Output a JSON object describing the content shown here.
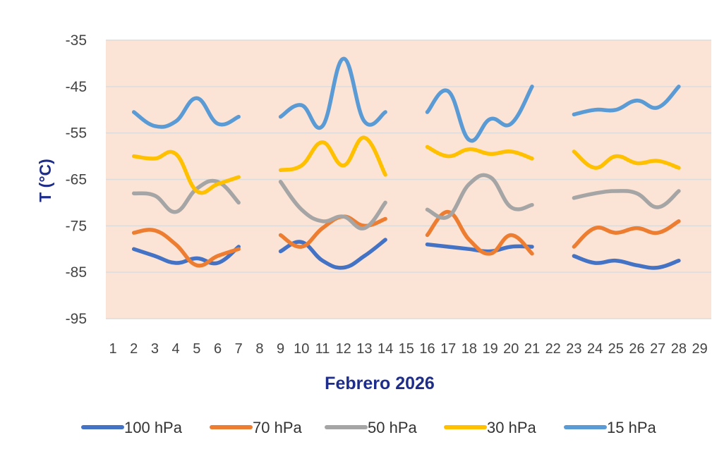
{
  "chart_data": {
    "type": "line",
    "title": "",
    "xlabel": "Febrero 2026",
    "ylabel": "T (°C)",
    "ylim": [
      -95,
      -35
    ],
    "yticks": [
      -35,
      -45,
      -55,
      -65,
      -75,
      -85,
      -95
    ],
    "xlim": [
      1,
      29
    ],
    "xticks": [
      1,
      2,
      3,
      4,
      5,
      6,
      7,
      8,
      9,
      10,
      11,
      12,
      13,
      14,
      15,
      16,
      17,
      18,
      19,
      20,
      21,
      22,
      23,
      24,
      25,
      26,
      27,
      28,
      29
    ],
    "grid": true,
    "plot_background": "#fbe4d6",
    "legend_position": "bottom",
    "series": [
      {
        "name": "100 hPa",
        "color": "#4472c4",
        "segments": [
          [
            [
              2,
              -80
            ],
            [
              3,
              -81.5
            ],
            [
              4,
              -83
            ],
            [
              5,
              -82
            ],
            [
              6,
              -83
            ],
            [
              7,
              -79.5
            ]
          ],
          [
            [
              9,
              -80.5
            ],
            [
              10,
              -78.5
            ],
            [
              11,
              -82.5
            ],
            [
              12,
              -84
            ],
            [
              13,
              -81.5
            ],
            [
              14,
              -78
            ]
          ],
          [
            [
              16,
              -79
            ],
            [
              17,
              -79.5
            ],
            [
              18,
              -80
            ],
            [
              19,
              -80.5
            ],
            [
              20,
              -79.5
            ],
            [
              21,
              -79.5
            ]
          ],
          [
            [
              23,
              -81.5
            ],
            [
              24,
              -83
            ],
            [
              25,
              -82.5
            ],
            [
              26,
              -83.5
            ],
            [
              27,
              -84
            ],
            [
              28,
              -82.5
            ]
          ]
        ]
      },
      {
        "name": "70 hPa",
        "color": "#ed7d31",
        "segments": [
          [
            [
              2,
              -76.5
            ],
            [
              3,
              -76
            ],
            [
              4,
              -79
            ],
            [
              5,
              -83.5
            ],
            [
              6,
              -81.5
            ],
            [
              7,
              -80
            ]
          ],
          [
            [
              9,
              -77
            ],
            [
              10,
              -79.5
            ],
            [
              11,
              -75.5
            ],
            [
              12,
              -73
            ],
            [
              13,
              -75
            ],
            [
              14,
              -73.5
            ]
          ],
          [
            [
              16,
              -77
            ],
            [
              17,
              -72
            ],
            [
              18,
              -78
            ],
            [
              19,
              -81
            ],
            [
              20,
              -77
            ],
            [
              21,
              -81
            ]
          ],
          [
            [
              23,
              -79.5
            ],
            [
              24,
              -75.5
            ],
            [
              25,
              -76.5
            ],
            [
              26,
              -75.5
            ],
            [
              27,
              -76.5
            ],
            [
              28,
              -74
            ]
          ]
        ]
      },
      {
        "name": "50 hPa",
        "color": "#a5a5a5",
        "segments": [
          [
            [
              2,
              -68
            ],
            [
              3,
              -68.5
            ],
            [
              4,
              -72
            ],
            [
              5,
              -67
            ],
            [
              6,
              -65.5
            ],
            [
              7,
              -70
            ]
          ],
          [
            [
              9,
              -65.5
            ],
            [
              10,
              -71.5
            ],
            [
              11,
              -74
            ],
            [
              12,
              -73
            ],
            [
              13,
              -75.5
            ],
            [
              14,
              -70
            ]
          ],
          [
            [
              16,
              -71.5
            ],
            [
              17,
              -73
            ],
            [
              18,
              -66
            ],
            [
              19,
              -64.5
            ],
            [
              20,
              -71
            ],
            [
              21,
              -70.5
            ]
          ],
          [
            [
              23,
              -69
            ],
            [
              24,
              -68
            ],
            [
              25,
              -67.5
            ],
            [
              26,
              -68
            ],
            [
              27,
              -71
            ],
            [
              28,
              -67.5
            ]
          ]
        ]
      },
      {
        "name": "30 hPa",
        "color": "#ffc000",
        "segments": [
          [
            [
              2,
              -60
            ],
            [
              3,
              -60.5
            ],
            [
              4,
              -59.5
            ],
            [
              5,
              -67.5
            ],
            [
              6,
              -66
            ],
            [
              7,
              -64.5
            ]
          ],
          [
            [
              9,
              -63
            ],
            [
              10,
              -62
            ],
            [
              11,
              -57
            ],
            [
              12,
              -62
            ],
            [
              13,
              -56
            ],
            [
              14,
              -64
            ]
          ],
          [
            [
              16,
              -58
            ],
            [
              17,
              -60
            ],
            [
              18,
              -58.5
            ],
            [
              19,
              -59.5
            ],
            [
              20,
              -59
            ],
            [
              21,
              -60.5
            ]
          ],
          [
            [
              23,
              -59
            ],
            [
              24,
              -62.5
            ],
            [
              25,
              -60
            ],
            [
              26,
              -61.5
            ],
            [
              27,
              -61
            ],
            [
              28,
              -62.5
            ]
          ]
        ]
      },
      {
        "name": "15 hPa",
        "color": "#5b9bd5",
        "segments": [
          [
            [
              2,
              -50.5
            ],
            [
              3,
              -53.5
            ],
            [
              4,
              -52.5
            ],
            [
              5,
              -47.5
            ],
            [
              6,
              -53
            ],
            [
              7,
              -51.5
            ]
          ],
          [
            [
              9,
              -51.5
            ],
            [
              10,
              -49
            ],
            [
              11,
              -53.5
            ],
            [
              12,
              -39
            ],
            [
              13,
              -52.5
            ],
            [
              14,
              -50.5
            ]
          ],
          [
            [
              16,
              -50.5
            ],
            [
              17,
              -46
            ],
            [
              18,
              -56.5
            ],
            [
              19,
              -52
            ],
            [
              20,
              -53
            ],
            [
              21,
              -45
            ]
          ],
          [
            [
              23,
              -51
            ],
            [
              24,
              -50
            ],
            [
              25,
              -50
            ],
            [
              26,
              -48
            ],
            [
              27,
              -49.5
            ],
            [
              28,
              -45
            ]
          ]
        ]
      }
    ]
  }
}
